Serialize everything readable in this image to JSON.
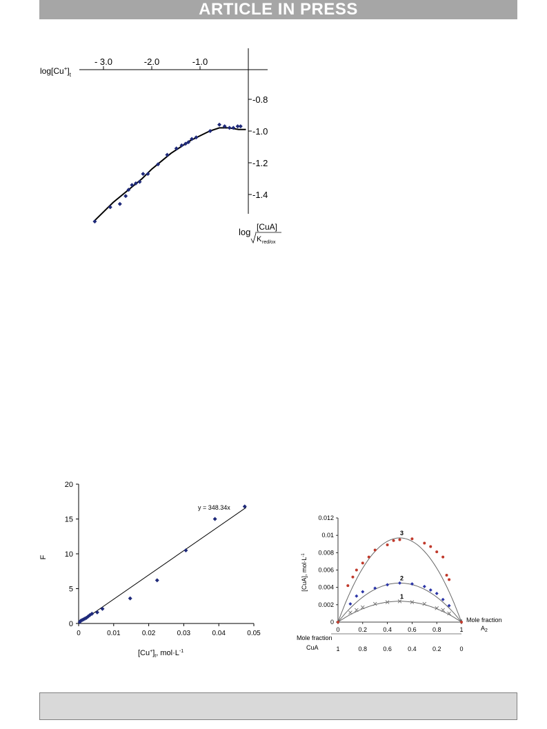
{
  "header": {
    "banner": "ARTICLE IN PRESS"
  },
  "figures": {
    "top": {
      "x_label_main": "log[Cu",
      "x_label_sup": "+",
      "x_label_sub": "t",
      "y_label_log": "log",
      "y_label_num": "[CuA]",
      "y_label_den": "K",
      "y_label_den_sub": "red/ox"
    },
    "bottom_left": {
      "y_label": "F",
      "x_label_a": "[Cu",
      "x_label_sup": "+",
      "x_label_b": "]",
      "x_label_sub": "t",
      "x_label_c": ", mol·L",
      "x_label_sup2": "-1",
      "equation": "y = 348.34x"
    },
    "bottom_right": {
      "y_label": "[CuA], mol·L",
      "y_label_sup": "-1",
      "x_label_right_1": "Mole fraction",
      "x_label_right_2": "A",
      "x_label_right_2_sub": "2",
      "x_label_left_1": "Mole fraction",
      "x_label_left_2": "CuA"
    }
  },
  "chart_data": [
    {
      "type": "scatter",
      "title": "",
      "xlabel": "log[Cu+]t",
      "ylabel": "log [CuA]/√Kred/ox",
      "xlim": [
        -3.3,
        0
      ],
      "ylim": [
        -1.6,
        -0.6
      ],
      "x_ticks": [
        {
          "value": -3.0,
          "label": "- 3.0"
        },
        {
          "value": -2.0,
          "label": "-2.0"
        },
        {
          "value": -1.0,
          "label": "-1.0"
        }
      ],
      "y_ticks": [
        {
          "value": -0.8,
          "label": "-0.8"
        },
        {
          "value": -1.0,
          "label": "-1.0"
        },
        {
          "value": -1.2,
          "label": "-1.2"
        },
        {
          "value": -1.4,
          "label": "-1.4"
        }
      ],
      "points": {
        "x": [
          -3.18,
          -2.86,
          -2.66,
          -2.54,
          -2.48,
          -2.41,
          -2.33,
          -2.25,
          -2.18,
          -2.08,
          -1.87,
          -1.68,
          -1.49,
          -1.38,
          -1.3,
          -1.24,
          -1.17,
          -1.08,
          -0.79,
          -0.6,
          -0.49,
          -0.39,
          -0.31,
          -0.22,
          -0.16
        ],
        "y": [
          -1.57,
          -1.48,
          -1.46,
          -1.41,
          -1.37,
          -1.34,
          -1.33,
          -1.32,
          -1.27,
          -1.27,
          -1.21,
          -1.15,
          -1.11,
          -1.09,
          -1.08,
          -1.07,
          -1.05,
          -1.04,
          -1.0,
          -0.96,
          -0.97,
          -0.98,
          -0.98,
          -0.97,
          -0.97
        ]
      },
      "curve": {
        "x": [
          -3.2,
          -3.0,
          -2.8,
          -2.6,
          -2.4,
          -2.2,
          -2.0,
          -1.8,
          -1.6,
          -1.4,
          -1.2,
          -1.0,
          -0.8,
          -0.6,
          -0.4,
          -0.2,
          -0.05
        ],
        "y": [
          -1.57,
          -1.51,
          -1.45,
          -1.4,
          -1.35,
          -1.3,
          -1.24,
          -1.19,
          -1.14,
          -1.1,
          -1.06,
          -1.03,
          -1.0,
          -0.98,
          -0.98,
          -0.99,
          -0.99
        ]
      }
    },
    {
      "type": "scatter",
      "title": "",
      "xlabel": "[Cu+]t, mol·L-1",
      "ylabel": "F",
      "xlim": [
        0,
        0.05
      ],
      "ylim": [
        0,
        20
      ],
      "x_ticks": [
        0,
        0.01,
        0.02,
        0.03,
        0.04,
        0.05
      ],
      "x_tick_labels": [
        "0",
        "0.01",
        "0.02",
        "0.03",
        "0.04",
        "0.05"
      ],
      "y_ticks": [
        0,
        5,
        10,
        15,
        20
      ],
      "y_tick_labels": [
        "0",
        "5",
        "10",
        "15",
        "20"
      ],
      "points": {
        "x": [
          0.0003,
          0.0006,
          0.001,
          0.0014,
          0.0018,
          0.0022,
          0.0027,
          0.0032,
          0.0038,
          0.0053,
          0.0068,
          0.0147,
          0.0224,
          0.0306,
          0.0389,
          0.0474
        ],
        "y": [
          0.2,
          0.4,
          0.5,
          0.6,
          0.7,
          0.8,
          1.0,
          1.2,
          1.4,
          1.6,
          2.1,
          3.6,
          6.2,
          10.5,
          15.0,
          16.8
        ]
      },
      "fit": {
        "slope": 348.34,
        "label": "y = 348.34x",
        "x": [
          0,
          0.0478
        ]
      }
    },
    {
      "type": "line",
      "title": "",
      "xlabel": "Mole fraction A2",
      "ylabel": "[CuA], mol·L-1",
      "xlim": [
        0,
        1
      ],
      "ylim": [
        0,
        0.012
      ],
      "x_ticks": [
        0,
        0.2,
        0.4,
        0.6,
        0.8,
        1
      ],
      "x_tick_labels": [
        "0",
        "0.2",
        "0.4",
        "0.6",
        "0.8",
        "1"
      ],
      "secondary_x_tick_labels": [
        "1",
        "0.8",
        "0.6",
        "0.4",
        "0.2",
        "0"
      ],
      "y_ticks": [
        0,
        0.002,
        0.004,
        0.006,
        0.008,
        0.01,
        0.012
      ],
      "y_tick_labels": [
        "0",
        "0.002",
        "0.004",
        "0.006",
        "0.008",
        "0.01",
        "0.012"
      ],
      "series": [
        {
          "name": "1",
          "marker": "x",
          "color": "#6e6e6e",
          "points": {
            "x": [
              0.1,
              0.15,
              0.2,
              0.3,
              0.4,
              0.5,
              0.6,
              0.7,
              0.8,
              0.85,
              0.9
            ],
            "y": [
              0.0011,
              0.0014,
              0.0017,
              0.0021,
              0.0023,
              0.0024,
              0.0023,
              0.0021,
              0.0016,
              0.0014,
              0.001
            ]
          },
          "peak": 0.0024
        },
        {
          "name": "2",
          "marker": "diamond",
          "color": "#2b35a8",
          "points": {
            "x": [
              0.1,
              0.15,
              0.2,
              0.3,
              0.4,
              0.5,
              0.6,
              0.7,
              0.75,
              0.8,
              0.85,
              0.9
            ],
            "y": [
              0.0021,
              0.003,
              0.0035,
              0.0039,
              0.0043,
              0.0045,
              0.0044,
              0.0041,
              0.0037,
              0.0033,
              0.0026,
              0.0019
            ]
          },
          "peak": 0.0045
        },
        {
          "name": "3",
          "marker": "dot",
          "color": "#c0392b",
          "points": {
            "x": [
              0.08,
              0.12,
              0.15,
              0.2,
              0.25,
              0.3,
              0.4,
              0.45,
              0.5,
              0.6,
              0.7,
              0.75,
              0.8,
              0.85,
              0.88,
              0.9
            ],
            "y": [
              0.0042,
              0.0052,
              0.006,
              0.0068,
              0.0075,
              0.0083,
              0.0089,
              0.0094,
              0.0095,
              0.0096,
              0.0091,
              0.0087,
              0.0081,
              0.0075,
              0.0054,
              0.0049
            ]
          },
          "peak": 0.0097
        }
      ]
    }
  ]
}
